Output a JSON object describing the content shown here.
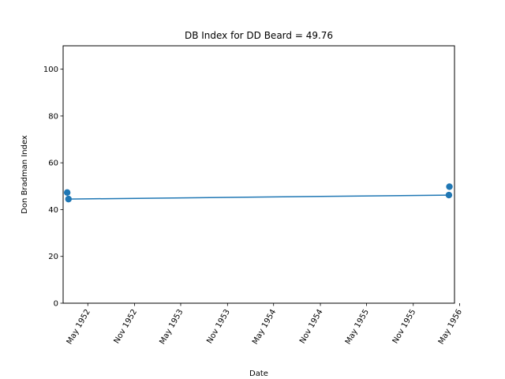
{
  "chart_data": {
    "type": "line",
    "title": "DB Index for DD Beard = 49.76",
    "xlabel": "Date",
    "ylabel": "Don Bradman Index",
    "ylim": [
      0,
      110
    ],
    "yticks": [
      0,
      20,
      40,
      60,
      80,
      100
    ],
    "xlim": [
      "1952-01-25",
      "1956-04-11"
    ],
    "xticks": [
      {
        "date": "1952-05-01",
        "label": "May 1952"
      },
      {
        "date": "1952-11-01",
        "label": "Nov 1952"
      },
      {
        "date": "1953-05-01",
        "label": "May 1953"
      },
      {
        "date": "1953-11-01",
        "label": "Nov 1953"
      },
      {
        "date": "1954-05-01",
        "label": "May 1954"
      },
      {
        "date": "1954-11-01",
        "label": "Nov 1954"
      },
      {
        "date": "1955-05-01",
        "label": "May 1955"
      },
      {
        "date": "1955-11-01",
        "label": "Nov 1955"
      },
      {
        "date": "1956-05-01",
        "label": "May 1956"
      }
    ],
    "grid": false,
    "line": {
      "x": [
        "1952-02-15",
        "1956-03-20"
      ],
      "y": [
        44.5,
        46.2
      ]
    },
    "points": {
      "x": [
        "1952-02-10",
        "1952-02-15",
        "1956-03-20",
        "1956-03-22"
      ],
      "y": [
        47.3,
        44.5,
        46.2,
        49.8
      ]
    },
    "color": "#1f77b4"
  }
}
